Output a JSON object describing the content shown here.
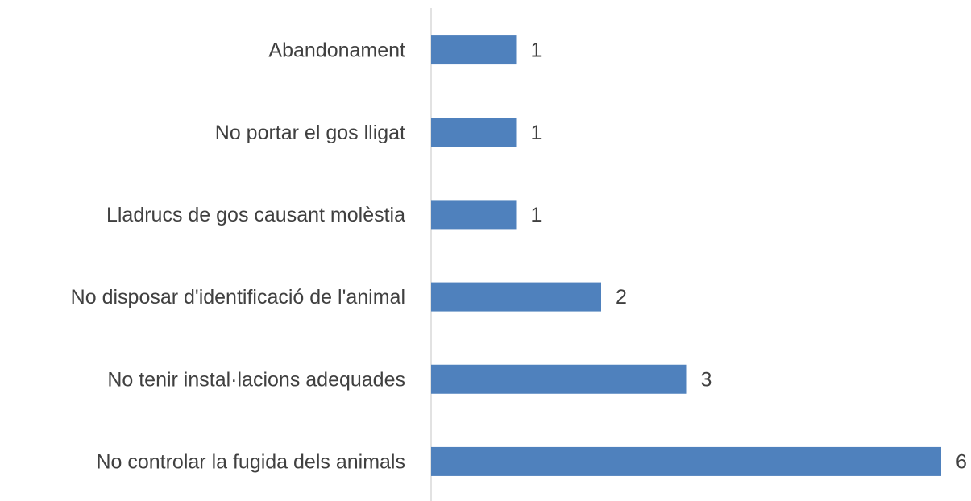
{
  "chart_data": {
    "type": "barh",
    "categories": [
      "Abandonament",
      "No portar el gos lligat",
      "Lladrucs de gos causant molèstia",
      "No disposar d'identificació de l'animal",
      "No tenir instal·lacions adequades",
      "No controlar la fugida dels animals"
    ],
    "values": [
      1,
      1,
      1,
      2,
      3,
      6
    ],
    "color": "#4f81bd",
    "xlim": [
      0,
      6
    ]
  }
}
